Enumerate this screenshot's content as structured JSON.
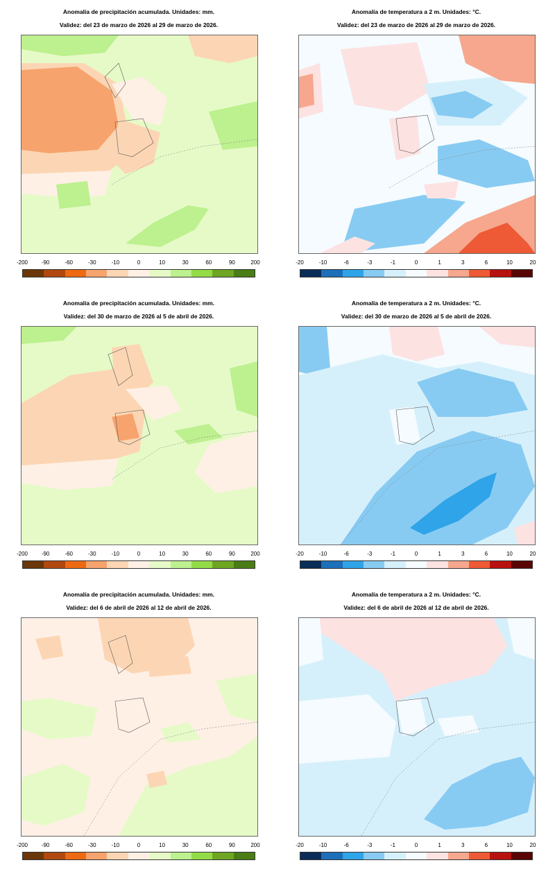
{
  "precip_scale": {
    "labels": [
      "-200",
      "-90",
      "-60",
      "-30",
      "-10",
      "0",
      "10",
      "30",
      "60",
      "90",
      "200"
    ],
    "colors": [
      "#6b3708",
      "#b0480f",
      "#ee6a12",
      "#f6a36d",
      "#fcd6b4",
      "#fff0e6",
      "#e6fac8",
      "#bdf08e",
      "#94dc47",
      "#6ea623",
      "#4a7d16"
    ]
  },
  "temp_scale": {
    "labels": [
      "-20",
      "-10",
      "-6",
      "-3",
      "-1",
      "0",
      "1",
      "3",
      "6",
      "10",
      "20"
    ],
    "colors": [
      "#0a2d58",
      "#1c6fb8",
      "#2fa4e8",
      "#88cbf2",
      "#d6f0fb",
      "#f5fbfe",
      "#fde2e2",
      "#f6a78d",
      "#ee5a35",
      "#b7120f",
      "#5a0505"
    ]
  },
  "panels": [
    {
      "title": "Anomalía de precipitación acumulada. Unidades: mm.",
      "validity": "Validez: del 23 de marzo de 2026 al 29 de marzo de 2026."
    },
    {
      "title": "Anomalía de temperatura a 2 m. Unidades: °C.",
      "validity": "Validez: del 23 de marzo de 2026 al 29 de marzo de 2026."
    },
    {
      "title": "Anomalía de precipitación acumulada. Unidades: mm.",
      "validity": "Validez: del 30 de marzo de 2026 al 5 de abril de 2026."
    },
    {
      "title": "Anomalía de temperatura a 2 m. Unidades: °C.",
      "validity": "Validez: del 30 de marzo de 2026 al 5 de abril de 2026."
    },
    {
      "title": "Anomalía de precipitación acumulada. Unidades: mm.",
      "validity": "Validez: del 6 de abril de 2026 al 12 de abril de 2026."
    },
    {
      "title": "Anomalía de temperatura a 2 m. Unidades: °C.",
      "validity": "Validez: del 6 de abril de 2026 al 12 de abril de 2026."
    }
  ]
}
